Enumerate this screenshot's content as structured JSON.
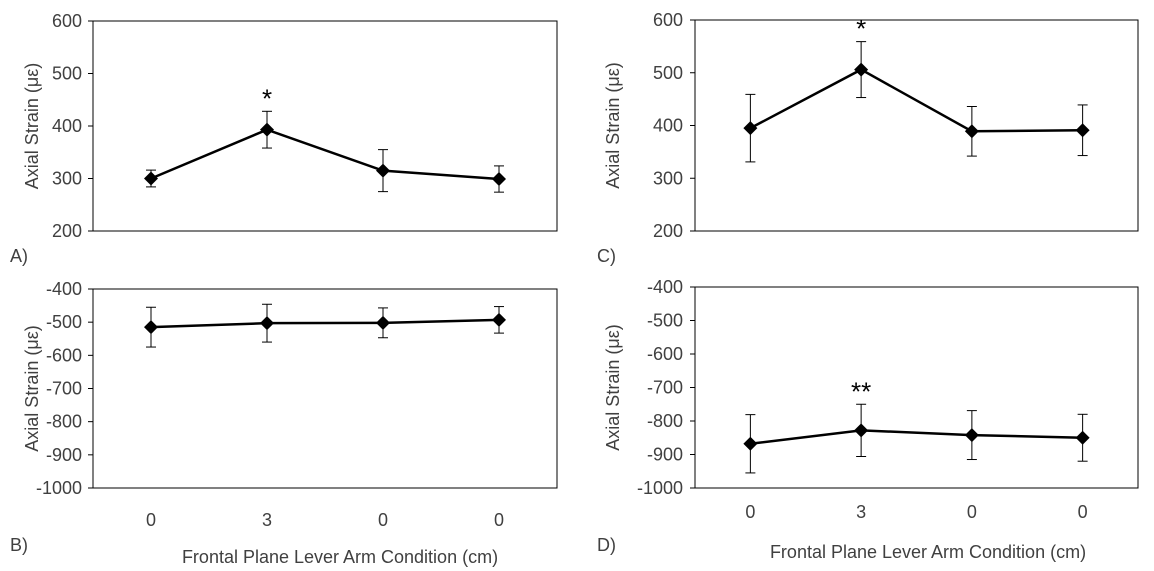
{
  "figure": {
    "xlabel": "Frontal Plane Lever Arm Condition (cm)"
  },
  "chart_data": [
    {
      "panel": "A)",
      "type": "line",
      "categories": [
        "0",
        "3",
        "0",
        "0"
      ],
      "values": [
        300,
        393,
        315,
        299
      ],
      "error": [
        16,
        35,
        40,
        25
      ],
      "ylabel": "Axial Strain (με)",
      "ylim": [
        200,
        600
      ],
      "yticks": [
        200,
        300,
        400,
        500,
        600
      ],
      "annotations": [
        {
          "category_index": 1,
          "text": "*"
        }
      ],
      "colors": {
        "line": "#000000",
        "marker": "#000000"
      }
    },
    {
      "panel": "B)",
      "type": "line",
      "categories": [
        "0",
        "3",
        "0",
        "0"
      ],
      "values": [
        -515,
        -503,
        -502,
        -493
      ],
      "error": [
        60,
        57,
        45,
        40
      ],
      "ylabel": "Axial Strain (με)",
      "ylim": [
        -1000,
        -400
      ],
      "yticks": [
        -1000,
        -900,
        -800,
        -700,
        -600,
        -500,
        -400
      ],
      "annotations": [],
      "colors": {
        "line": "#000000",
        "marker": "#000000"
      }
    },
    {
      "panel": "C)",
      "type": "line",
      "categories": [
        "0",
        "3",
        "0",
        "0"
      ],
      "values": [
        395,
        506,
        389,
        391
      ],
      "error": [
        64,
        53,
        47,
        48
      ],
      "ylabel": "Axial Strain (με)",
      "ylim": [
        200,
        600
      ],
      "yticks": [
        200,
        300,
        400,
        500,
        600
      ],
      "annotations": [
        {
          "category_index": 1,
          "text": "*"
        }
      ],
      "colors": {
        "line": "#000000",
        "marker": "#000000"
      }
    },
    {
      "panel": "D)",
      "type": "line",
      "categories": [
        "0",
        "3",
        "0",
        "0"
      ],
      "values": [
        -868,
        -828,
        -842,
        -850
      ],
      "error": [
        87,
        78,
        73,
        70
      ],
      "ylabel": "Axial Strain (με)",
      "ylim": [
        -1000,
        -400
      ],
      "yticks": [
        -1000,
        -900,
        -800,
        -700,
        -600,
        -500,
        -400
      ],
      "annotations": [
        {
          "category_index": 1,
          "text": "**"
        }
      ],
      "colors": {
        "line": "#000000",
        "marker": "#000000"
      }
    }
  ]
}
